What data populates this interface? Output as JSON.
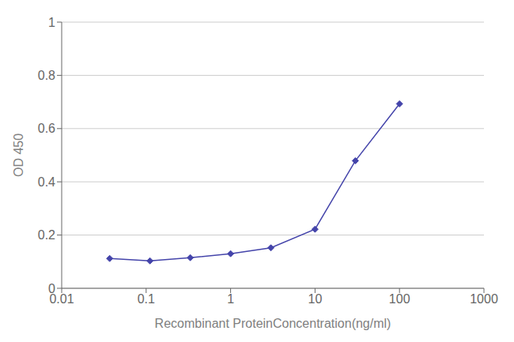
{
  "chart_data": {
    "type": "line",
    "x": [
      0.037,
      0.111,
      0.333,
      1.0,
      3.0,
      10.0,
      30.0,
      100.0
    ],
    "values": [
      0.112,
      0.103,
      0.115,
      0.13,
      0.152,
      0.222,
      0.479,
      0.693
    ],
    "color": "#4444aa",
    "marker": "diamond",
    "x_label": "Recombinant ProteinConcentration(ng/ml)",
    "y_label": "OD 450",
    "log": "x",
    "xlim": [
      0.01,
      1000
    ],
    "ylim": [
      0,
      1.0
    ],
    "xticks": [
      0.01,
      0.1,
      1,
      10,
      100,
      1000
    ],
    "yticks": [
      0,
      0.2,
      0.4,
      0.6,
      0.8,
      1
    ],
    "grid": true
  }
}
